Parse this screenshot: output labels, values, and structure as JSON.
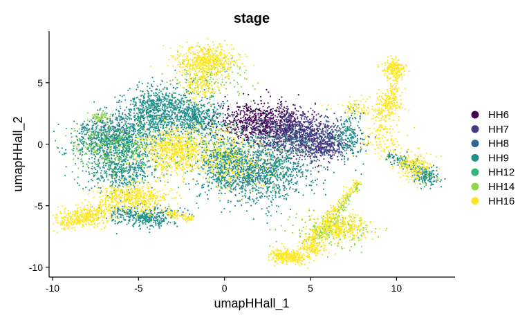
{
  "chart_data": {
    "type": "scatter",
    "title": "stage",
    "xlabel": "umapHHall_1",
    "ylabel": "umapHHall_2",
    "xlim": [
      -10.2,
      13.4
    ],
    "ylim": [
      -10.8,
      9.2
    ],
    "xticks": [
      -10,
      -5,
      0,
      5,
      10
    ],
    "yticks": [
      -10,
      -5,
      0,
      5
    ],
    "grid": false,
    "legend_position": "right",
    "series": [
      {
        "name": "HH6",
        "color": "#440154"
      },
      {
        "name": "HH7",
        "color": "#443983"
      },
      {
        "name": "HH8",
        "color": "#31688E"
      },
      {
        "name": "HH9",
        "color": "#21908C"
      },
      {
        "name": "HH12",
        "color": "#35B779"
      },
      {
        "name": "HH14",
        "color": "#8FD744"
      },
      {
        "name": "HH16",
        "color": "#FDE725"
      }
    ],
    "clusters": [
      {
        "series": 3,
        "cx": -6.5,
        "cy": 0.3,
        "sx": 1.1,
        "sy": 0.9,
        "n": 700
      },
      {
        "series": 3,
        "cx": -3.8,
        "cy": 2.8,
        "sx": 1.1,
        "sy": 1.0,
        "n": 800
      },
      {
        "series": 3,
        "cx": -6.0,
        "cy": -2.2,
        "sx": 1.0,
        "sy": 0.8,
        "n": 400
      },
      {
        "series": 3,
        "cx": -1.5,
        "cy": 2.0,
        "sx": 0.8,
        "sy": 0.8,
        "n": 400
      },
      {
        "series": 3,
        "cx": 2.2,
        "cy": -2.3,
        "sx": 1.4,
        "sy": 1.2,
        "n": 900
      },
      {
        "series": 3,
        "cx": -0.2,
        "cy": -1.5,
        "sx": 0.6,
        "sy": 1.0,
        "n": 300
      },
      {
        "series": 3,
        "cx": -4.5,
        "cy": -5.8,
        "sx": 1.0,
        "sy": 0.5,
        "n": 250
      },
      {
        "series": 3,
        "cx": 7.2,
        "cy": 0.8,
        "sx": 0.5,
        "sy": 1.0,
        "n": 200
      },
      {
        "series": 3,
        "cx": 11.8,
        "cy": -2.6,
        "sx": 0.4,
        "sy": 0.4,
        "n": 120
      },
      {
        "series": 4,
        "cx": -5.0,
        "cy": -0.5,
        "sx": 2.0,
        "sy": 1.5,
        "n": 300
      },
      {
        "series": 4,
        "cx": 0.5,
        "cy": -1.0,
        "sx": 2.0,
        "sy": 1.5,
        "n": 200
      },
      {
        "series": 2,
        "cx": -6.0,
        "cy": 1.2,
        "sx": 1.2,
        "sy": 0.6,
        "n": 150
      },
      {
        "series": 2,
        "cx": 1.5,
        "cy": -2.5,
        "sx": 1.0,
        "sy": 0.8,
        "n": 150
      },
      {
        "series": 0,
        "cx": 2.2,
        "cy": 1.8,
        "sx": 1.3,
        "sy": 0.8,
        "n": 700
      },
      {
        "series": 1,
        "cx": 4.3,
        "cy": 0.8,
        "sx": 1.2,
        "sy": 0.9,
        "n": 800
      },
      {
        "series": 1,
        "cx": 5.8,
        "cy": -0.3,
        "sx": 0.6,
        "sy": 0.6,
        "n": 250
      },
      {
        "series": 2,
        "cx": 3.8,
        "cy": 0.5,
        "sx": 1.8,
        "sy": 0.8,
        "n": 250
      },
      {
        "series": 5,
        "cx": -6.5,
        "cy": 0.0,
        "sx": 1.2,
        "sy": 0.9,
        "n": 200
      },
      {
        "series": 5,
        "cx": -1.0,
        "cy": 5.5,
        "sx": 1.3,
        "sy": 0.9,
        "n": 150
      },
      {
        "series": 5,
        "cx": 6.0,
        "cy": -7.0,
        "sx": 1.2,
        "sy": 0.7,
        "n": 180
      },
      {
        "series": 5,
        "cx": -7.2,
        "cy": 2.2,
        "sx": 0.3,
        "sy": 0.2,
        "n": 60
      },
      {
        "series": 6,
        "cx": -1.0,
        "cy": 6.8,
        "sx": 0.9,
        "sy": 0.6,
        "n": 500
      },
      {
        "series": 6,
        "cx": -1.5,
        "cy": 4.8,
        "sx": 0.5,
        "sy": 0.6,
        "n": 150
      },
      {
        "series": 6,
        "cx": -2.8,
        "cy": -0.5,
        "sx": 1.0,
        "sy": 0.9,
        "n": 700
      },
      {
        "series": 6,
        "cx": -5.3,
        "cy": -4.3,
        "sx": 1.0,
        "sy": 0.6,
        "n": 500
      },
      {
        "series": 6,
        "cx": -8.3,
        "cy": -6.0,
        "sx": 0.9,
        "sy": 0.4,
        "n": 250
      },
      {
        "series": 6,
        "cx": 0.0,
        "cy": -1.0,
        "sx": 0.5,
        "sy": 1.3,
        "n": 150
      },
      {
        "series": 6,
        "cx": 9.8,
        "cy": 6.2,
        "sx": 0.3,
        "sy": 0.4,
        "n": 150
      },
      {
        "series": 6,
        "cx": 9.6,
        "cy": 3.3,
        "sx": 0.4,
        "sy": 0.6,
        "n": 150
      },
      {
        "series": 6,
        "cx": 11.0,
        "cy": -1.8,
        "sx": 0.6,
        "sy": 0.6,
        "n": 200
      },
      {
        "series": 6,
        "cx": 6.7,
        "cy": -6.8,
        "sx": 0.8,
        "sy": 0.6,
        "n": 350
      },
      {
        "series": 6,
        "cx": 4.0,
        "cy": -9.2,
        "sx": 0.5,
        "sy": 0.3,
        "n": 200
      },
      {
        "series": 6,
        "cx": 3.2,
        "cy": -9.0,
        "sx": 0.3,
        "sy": 0.3,
        "n": 80
      },
      {
        "series": 6,
        "cx": 5.2,
        "cy": -8.3,
        "sx": 0.4,
        "sy": 0.3,
        "n": 100
      },
      {
        "series": 6,
        "cx": 1.5,
        "cy": -1.5,
        "sx": 1.2,
        "sy": 1.0,
        "n": 120
      },
      {
        "series": 6,
        "cx": 7.8,
        "cy": 3.0,
        "sx": 0.6,
        "sy": 0.4,
        "n": 80
      },
      {
        "series": 6,
        "cx": 9.2,
        "cy": 0.3,
        "sx": 0.6,
        "sy": 0.6,
        "n": 100
      }
    ],
    "streaks": [
      {
        "series": 6,
        "x1": 4.5,
        "y1": -8.6,
        "x2": 7.8,
        "y2": -3.0,
        "w": 0.18,
        "n": 200
      },
      {
        "series": 5,
        "x1": 5.5,
        "y1": -7.6,
        "x2": 7.9,
        "y2": -3.2,
        "w": 0.12,
        "n": 120
      },
      {
        "series": 6,
        "x1": 9.0,
        "y1": 1.0,
        "x2": 10.2,
        "y2": 6.5,
        "w": 0.22,
        "n": 150
      },
      {
        "series": 6,
        "x1": -9.6,
        "y1": -6.7,
        "x2": -6.5,
        "y2": -4.8,
        "w": 0.3,
        "n": 200
      },
      {
        "series": 3,
        "x1": -6.5,
        "y1": -5.5,
        "x2": -3.5,
        "y2": -6.2,
        "w": 0.3,
        "n": 150
      },
      {
        "series": 3,
        "x1": 9.5,
        "y1": -0.8,
        "x2": 12.0,
        "y2": -2.5,
        "w": 0.25,
        "n": 150
      },
      {
        "series": 6,
        "x1": -3.5,
        "y1": -5.5,
        "x2": -1.8,
        "y2": -6.1,
        "w": 0.15,
        "n": 80
      }
    ]
  }
}
